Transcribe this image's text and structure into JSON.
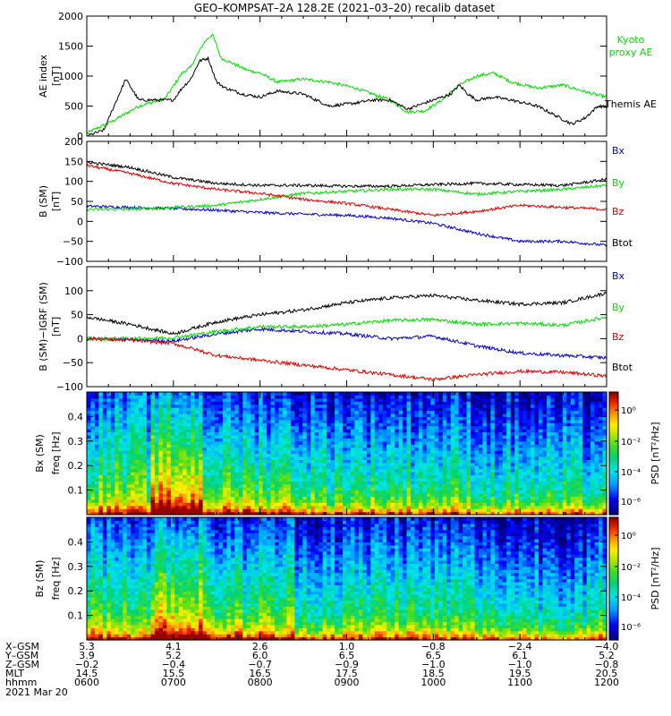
{
  "title": "GEO–KOMPSAT–2A 128.2E (2021–03–20) recalib dataset",
  "colors": {
    "black": "#000000",
    "green": "#00dd00",
    "red": "#dd0000",
    "blue": "#0000cc"
  },
  "chart_data": [
    {
      "type": "line",
      "ylabel": "AE index [nT]",
      "ylim": [
        0,
        2000
      ],
      "yticks": [
        0,
        500,
        1000,
        1500,
        2000
      ],
      "xlim": [
        0,
        6
      ],
      "legend": [
        {
          "text": "Kyoto",
          "color": "green"
        },
        {
          "text": "proxy AE",
          "color": "green"
        },
        {
          "text": "Themis AE",
          "color": "black"
        }
      ],
      "series": [
        {
          "name": "Kyoto proxy AE",
          "color": "green",
          "x": [
            0,
            0.3,
            0.6,
            0.9,
            1.1,
            1.2,
            1.35,
            1.45,
            1.55,
            1.7,
            1.85,
            2.0,
            2.2,
            2.5,
            2.8,
            3.1,
            3.3,
            3.5,
            3.7,
            3.9,
            4.1,
            4.3,
            4.5,
            4.7,
            4.9,
            5.2,
            5.5,
            5.8,
            6.0
          ],
          "y": [
            50,
            250,
            500,
            620,
            1050,
            1150,
            1550,
            1700,
            1300,
            1200,
            1100,
            1050,
            900,
            950,
            900,
            800,
            700,
            600,
            400,
            420,
            600,
            850,
            1000,
            1050,
            900,
            800,
            850,
            720,
            650
          ]
        },
        {
          "name": "Themis AE",
          "color": "black",
          "x": [
            0,
            0.2,
            0.3,
            0.45,
            0.6,
            0.8,
            1.0,
            1.1,
            1.2,
            1.3,
            1.4,
            1.5,
            1.6,
            1.8,
            2.0,
            2.2,
            2.5,
            2.8,
            3.1,
            3.3,
            3.5,
            3.7,
            3.9,
            4.1,
            4.2,
            4.3,
            4.4,
            4.5,
            4.7,
            4.9,
            5.2,
            5.4,
            5.6,
            5.75,
            5.9,
            6.0
          ],
          "y": [
            0,
            100,
            450,
            950,
            600,
            600,
            600,
            800,
            950,
            1250,
            1300,
            900,
            800,
            700,
            650,
            750,
            700,
            500,
            550,
            600,
            600,
            450,
            550,
            650,
            700,
            850,
            700,
            600,
            650,
            600,
            500,
            350,
            200,
            300,
            500,
            480
          ]
        }
      ]
    },
    {
      "type": "line",
      "ylabel": "B (SM) [nT]",
      "ylim": [
        -100,
        200
      ],
      "yticks": [
        -100,
        -50,
        0,
        50,
        100,
        150,
        200
      ],
      "xlim": [
        0,
        6
      ],
      "legend": [
        {
          "text": "Bx",
          "color": "blue"
        },
        {
          "text": "By",
          "color": "green"
        },
        {
          "text": "Bz",
          "color": "red"
        },
        {
          "text": "Btot",
          "color": "black"
        }
      ],
      "series": [
        {
          "name": "Bx",
          "color": "blue",
          "x": [
            0,
            0.5,
            1.0,
            1.5,
            2.0,
            2.5,
            3.0,
            3.5,
            4.0,
            4.5,
            5.0,
            5.5,
            6.0
          ],
          "y": [
            38,
            35,
            32,
            28,
            22,
            18,
            15,
            8,
            -5,
            -30,
            -50,
            -50,
            -60
          ]
        },
        {
          "name": "By",
          "color": "green",
          "x": [
            0,
            0.5,
            1.0,
            1.5,
            2.0,
            2.5,
            3.0,
            3.5,
            4.0,
            4.5,
            5.0,
            5.5,
            6.0
          ],
          "y": [
            30,
            30,
            35,
            40,
            55,
            70,
            75,
            80,
            80,
            68,
            75,
            80,
            90
          ]
        },
        {
          "name": "Bz",
          "color": "red",
          "x": [
            0,
            0.5,
            1.0,
            1.5,
            2.0,
            2.5,
            3.0,
            3.5,
            4.0,
            4.5,
            5.0,
            5.5,
            6.0
          ],
          "y": [
            140,
            120,
            95,
            80,
            70,
            55,
            45,
            30,
            15,
            25,
            40,
            35,
            30
          ]
        },
        {
          "name": "Btot",
          "color": "black",
          "x": [
            0,
            0.5,
            1.0,
            1.5,
            2.0,
            2.5,
            3.0,
            3.5,
            4.0,
            4.5,
            5.0,
            5.5,
            6.0
          ],
          "y": [
            148,
            135,
            110,
            95,
            90,
            90,
            88,
            88,
            92,
            95,
            92,
            90,
            105
          ]
        }
      ]
    },
    {
      "type": "line",
      "ylabel": "B (SM)−IGRF (SM) [nT]",
      "ylim": [
        -100,
        150
      ],
      "yticks": [
        -100,
        -50,
        0,
        50,
        100
      ],
      "xlim": [
        0,
        6
      ],
      "legend": [
        {
          "text": "Bx",
          "color": "blue"
        },
        {
          "text": "By",
          "color": "green"
        },
        {
          "text": "Bz",
          "color": "red"
        },
        {
          "text": "Btot",
          "color": "black"
        }
      ],
      "series": [
        {
          "name": "Bx",
          "color": "blue",
          "x": [
            0,
            0.5,
            1.0,
            1.5,
            2.0,
            2.5,
            3.0,
            3.5,
            4.0,
            4.5,
            5.0,
            5.5,
            6.0
          ],
          "y": [
            0,
            -2,
            -5,
            10,
            20,
            15,
            10,
            0,
            5,
            -15,
            -30,
            -35,
            -40
          ]
        },
        {
          "name": "By",
          "color": "green",
          "x": [
            0,
            0.5,
            1.0,
            1.5,
            2.0,
            2.5,
            3.0,
            3.5,
            4.0,
            4.5,
            5.0,
            5.5,
            6.0
          ],
          "y": [
            0,
            0,
            2,
            15,
            25,
            25,
            30,
            38,
            40,
            30,
            32,
            28,
            45
          ]
        },
        {
          "name": "Bz",
          "color": "red",
          "x": [
            0,
            0.5,
            1.0,
            1.5,
            2.0,
            2.5,
            3.0,
            3.5,
            4.0,
            4.5,
            5.0,
            5.5,
            6.0
          ],
          "y": [
            0,
            -3,
            -10,
            -35,
            -45,
            -55,
            -65,
            -75,
            -85,
            -75,
            -68,
            -70,
            -78
          ]
        },
        {
          "name": "Btot",
          "color": "black",
          "x": [
            0,
            0.5,
            1.0,
            1.5,
            2.0,
            2.5,
            3.0,
            3.5,
            4.0,
            4.5,
            5.0,
            5.5,
            6.0
          ],
          "y": [
            45,
            30,
            10,
            35,
            50,
            60,
            75,
            85,
            90,
            80,
            72,
            75,
            95
          ]
        }
      ]
    },
    {
      "type": "heatmap",
      "ylabel": "Bx (SM) freq [Hz]",
      "ylim": [
        0,
        0.5
      ],
      "yticks": [
        0.1,
        0.2,
        0.3,
        0.4
      ],
      "colorbar_label": "PSD [nT²/Hz]",
      "colorbar_ticks": [
        "10⁰",
        "10⁻²",
        "10⁻⁴",
        "10⁻⁶"
      ]
    },
    {
      "type": "heatmap",
      "ylabel": "Bz (SM) freq [Hz]",
      "ylim": [
        0,
        0.5
      ],
      "yticks": [
        0.1,
        0.2,
        0.3,
        0.4
      ],
      "colorbar_label": "PSD [nT²/Hz]",
      "colorbar_ticks": [
        "10⁰",
        "10⁻²",
        "10⁻⁴",
        "10⁻⁶"
      ]
    }
  ],
  "orbit_table": {
    "rows": [
      {
        "label": "X–GSM",
        "values": [
          "5.3",
          "4.1",
          "2.6",
          "1.0",
          "−0.8",
          "−2.4",
          "−4.0"
        ]
      },
      {
        "label": "Y–GSM",
        "values": [
          "3.9",
          "5.2",
          "6.0",
          "6.5",
          "6.5",
          "6.1",
          "5.2"
        ]
      },
      {
        "label": "Z–GSM",
        "values": [
          "−0.2",
          "−0.4",
          "−0.7",
          "−0.9",
          "−1.0",
          "−1.0",
          "−0.8"
        ]
      },
      {
        "label": "MLT",
        "values": [
          "14.5",
          "15.5",
          "16.5",
          "17.5",
          "18.5",
          "19.5",
          "20.5"
        ]
      },
      {
        "label": "hhmm",
        "values": [
          "0600",
          "0700",
          "0800",
          "0900",
          "1000",
          "1100",
          "1200"
        ]
      }
    ],
    "date": "2021 Mar 20"
  }
}
